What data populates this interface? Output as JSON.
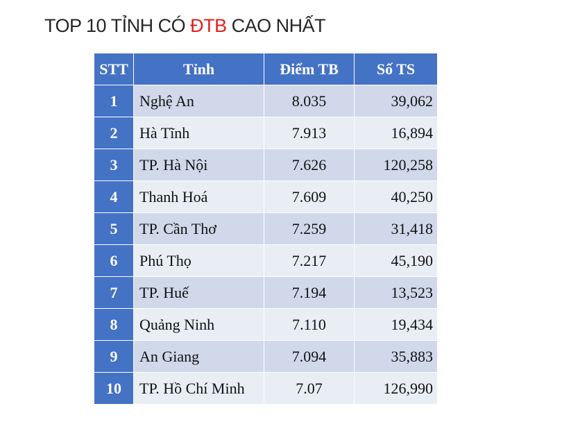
{
  "title": {
    "prefix": "TOP 10 TỈNH CÓ ",
    "accent": "ĐTB",
    "suffix": " CAO NHẤT",
    "accent_color": "#e02020"
  },
  "header_color": "#4472c4",
  "table": {
    "headers": [
      "STT",
      "Tỉnh",
      "Điểm TB",
      "Số TS"
    ],
    "rows": [
      {
        "stt": "1",
        "province": "Nghệ An",
        "score": "8.035",
        "count": "39,062"
      },
      {
        "stt": "2",
        "province": "Hà Tĩnh",
        "score": "7.913",
        "count": "16,894"
      },
      {
        "stt": "3",
        "province": "TP. Hà Nội",
        "score": "7.626",
        "count": "120,258"
      },
      {
        "stt": "4",
        "province": "Thanh Hoá",
        "score": "7.609",
        "count": "40,250"
      },
      {
        "stt": "5",
        "province": "TP. Cần Thơ",
        "score": "7.259",
        "count": "31,418"
      },
      {
        "stt": "6",
        "province": "Phú Thọ",
        "score": "7.217",
        "count": "45,190"
      },
      {
        "stt": "7",
        "province": "TP. Huế",
        "score": "7.194",
        "count": "13,523"
      },
      {
        "stt": "8",
        "province": "Quảng Ninh",
        "score": "7.110",
        "count": "19,434"
      },
      {
        "stt": "9",
        "province": "An Giang",
        "score": "7.094",
        "count": "35,883"
      },
      {
        "stt": "10",
        "province": "TP. Hồ Chí Minh",
        "score": "7.07",
        "count": "126,990"
      }
    ]
  }
}
